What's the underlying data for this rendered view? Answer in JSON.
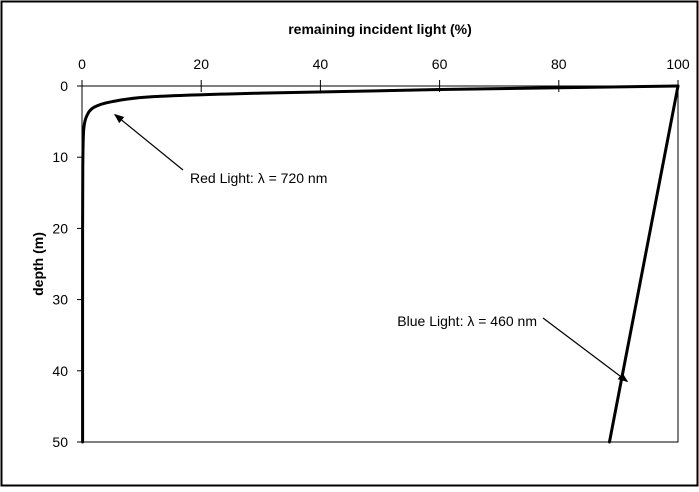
{
  "chart_data": {
    "type": "line",
    "title": "",
    "xlabel": "remaining incident light (%)",
    "ylabel": "depth (m)",
    "xlim": [
      0,
      100
    ],
    "ylim": [
      0,
      50
    ],
    "y_inverted": true,
    "x_axis_position": "top",
    "x_ticks": [
      "0",
      "20",
      "40",
      "60",
      "80",
      "100"
    ],
    "y_ticks": [
      "0",
      "10",
      "20",
      "30",
      "40",
      "50"
    ],
    "grid": false,
    "legend": "none",
    "series": [
      {
        "key": "red",
        "color": "#000000",
        "points": [
          {
            "x": 100,
            "y": 0
          },
          {
            "x": 60,
            "y": 0.5
          },
          {
            "x": 30,
            "y": 1.0
          },
          {
            "x": 12,
            "y": 1.5
          },
          {
            "x": 5,
            "y": 2.2
          },
          {
            "x": 2,
            "y": 3.0
          },
          {
            "x": 0.8,
            "y": 4.2
          },
          {
            "x": 0.3,
            "y": 6.0
          },
          {
            "x": 0.15,
            "y": 10
          },
          {
            "x": 0.1,
            "y": 20
          },
          {
            "x": 0.1,
            "y": 50
          }
        ]
      },
      {
        "key": "blue",
        "color": "#000000",
        "points": [
          {
            "x": 100,
            "y": 0
          },
          {
            "x": 88.5,
            "y": 50
          }
        ]
      }
    ],
    "annotations": [
      {
        "key": "red",
        "text": "Red Light: λ = 720 nm",
        "arrow_to": {
          "x": 5.5,
          "y": 4.0
        }
      },
      {
        "key": "blue",
        "text": "Blue Light: λ = 460 nm",
        "arrow_to": {
          "x": 91.5,
          "y": 41.5
        }
      }
    ]
  }
}
